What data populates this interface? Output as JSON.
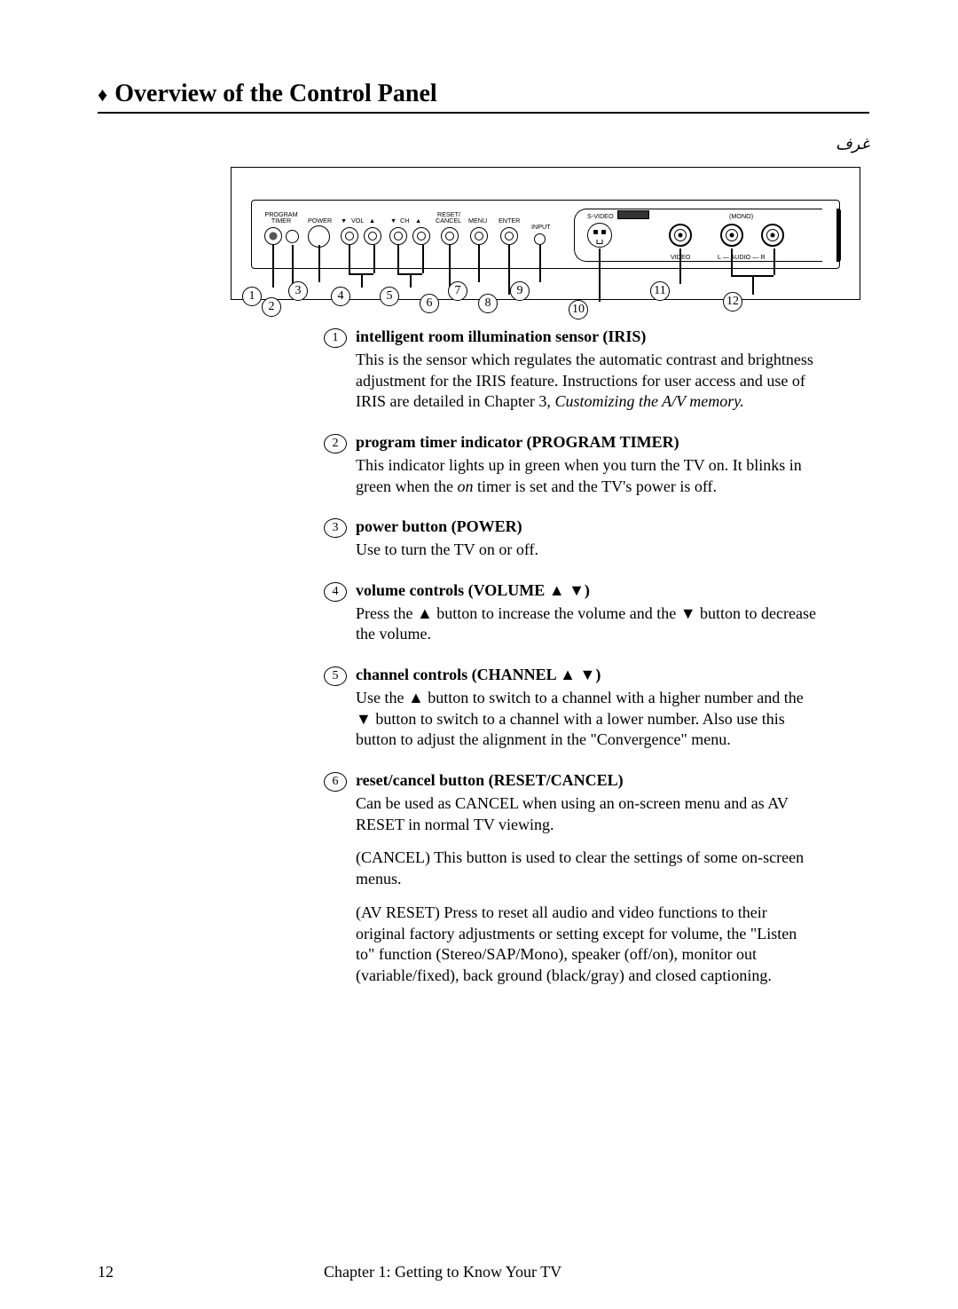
{
  "header": {
    "marker": "♦",
    "title": "Overview of the Control Panel"
  },
  "schematic": {
    "corner_mark": "غرف",
    "labels": {
      "program_timer_1": "PROGRAM",
      "program_timer_2": "TIMER",
      "power": "POWER",
      "vol": "VOL",
      "ch": "CH",
      "reset1": "RESET/",
      "reset2": "CANCEL",
      "menu": "MENU",
      "enter": "ENTER",
      "input": "INPUT",
      "svideo": "S-VIDEO",
      "mono": "(MONO)",
      "video": "VIDEO",
      "audio": "L — AUDIO — R"
    },
    "callouts": [
      "1",
      "2",
      "3",
      "4",
      "5",
      "6",
      "7",
      "8",
      "9",
      "10",
      "11",
      "12"
    ]
  },
  "items": [
    {
      "num": "1",
      "title": "intelligent room illumination sensor (IRIS)",
      "paras": [
        "This is the sensor which regulates the automatic contrast and brightness adjustment for the IRIS feature.  Instructions for user access and use of IRIS are detailed in Chapter 3, <i>Customizing the A/V memory.</i>"
      ]
    },
    {
      "num": "2",
      "title": "program timer indicator (PROGRAM TIMER)",
      "paras": [
        "This indicator lights up in green when you turn the TV on.  It blinks in green when the <i>on</i> timer is set and the TV's power is off."
      ]
    },
    {
      "num": "3",
      "title": "power button (POWER)",
      "paras": [
        "Use to turn the TV on or off."
      ]
    },
    {
      "num": "4",
      "title": "volume controls (VOLUME ▲ ▼)",
      "paras": [
        "Press the ▲ button to increase the volume and the ▼ button to decrease the volume."
      ]
    },
    {
      "num": "5",
      "title": "channel controls (CHANNEL ▲ ▼)",
      "paras": [
        "Use the ▲ button to switch to a channel with a higher number and the ▼ button to switch to a channel with a lower number.  Also use this button to adjust the alignment in the \"Convergence\" menu."
      ]
    },
    {
      "num": "6",
      "title": "reset/cancel button (RESET/CANCEL)",
      "paras": [
        "Can be used as CANCEL when using an on-screen menu and as AV RESET in normal TV viewing.",
        "(CANCEL)  This button is used to clear the settings of some on-screen menus.",
        "(AV RESET)  Press to reset all audio and video functions to their original factory adjustments or setting except for volume, the \"Listen to\" function (Stereo/SAP/Mono), speaker (off/on), monitor out (variable/fixed), back ground (black/gray) and closed captioning."
      ]
    }
  ],
  "footer": {
    "page": "12",
    "chapter": "Chapter 1: Getting to Know Your TV"
  }
}
